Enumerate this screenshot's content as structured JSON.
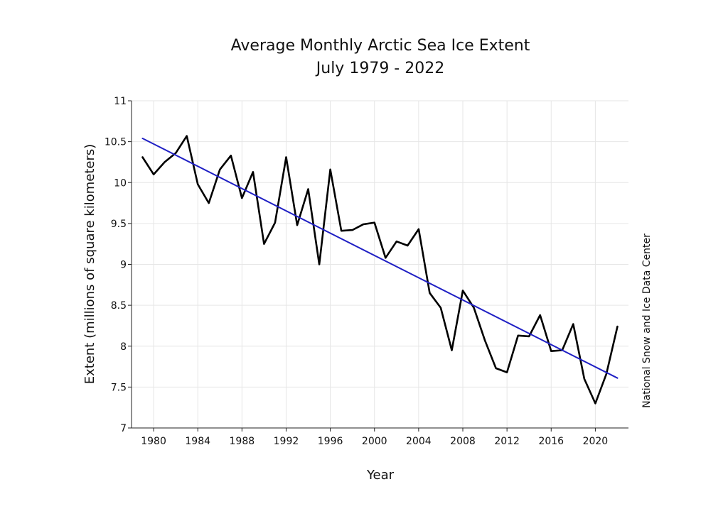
{
  "chart_data": {
    "type": "line",
    "title": "Average Monthly Arctic Sea Ice Extent",
    "subtitle": "July 1979 - 2022",
    "xlabel": "Year",
    "ylabel": "Extent (millions of square kilometers)",
    "credit": "National Snow and Ice Data Center",
    "xlim": [
      1978,
      2023
    ],
    "ylim": [
      7,
      11
    ],
    "xticks": [
      1980,
      1984,
      1988,
      1992,
      1996,
      2000,
      2004,
      2008,
      2012,
      2016,
      2020
    ],
    "xtick_labels": [
      "1980",
      "1984",
      "1988",
      "1992",
      "1996",
      "2000",
      "2004",
      "2008",
      "2012",
      "2016",
      "2020"
    ],
    "yticks": [
      7,
      7.5,
      8,
      8.5,
      9,
      9.5,
      10,
      10.5,
      11
    ],
    "ytick_labels": [
      "7",
      "7.5",
      "8",
      "8.5",
      "9",
      "9.5",
      "10",
      "10.5",
      "11"
    ],
    "grid": true,
    "legend": "none",
    "series": [
      {
        "color": "#000000",
        "x": [
          1979,
          1980,
          1981,
          1982,
          1983,
          1984,
          1985,
          1986,
          1987,
          1988,
          1989,
          1990,
          1991,
          1992,
          1993,
          1994,
          1995,
          1996,
          1997,
          1998,
          1999,
          2000,
          2001,
          2002,
          2003,
          2004,
          2005,
          2006,
          2007,
          2008,
          2009,
          2010,
          2011,
          2012,
          2013,
          2014,
          2015,
          2016,
          2017,
          2018,
          2019,
          2020,
          2021,
          2022
        ],
        "values": [
          10.31,
          10.1,
          10.25,
          10.36,
          10.57,
          9.98,
          9.75,
          10.16,
          10.33,
          9.81,
          10.13,
          9.25,
          9.51,
          10.31,
          9.48,
          9.92,
          9.0,
          10.16,
          9.41,
          9.42,
          9.49,
          9.51,
          9.08,
          9.28,
          9.23,
          9.43,
          8.65,
          8.47,
          7.95,
          8.68,
          8.47,
          8.07,
          7.73,
          7.68,
          8.13,
          8.12,
          8.38,
          7.94,
          7.95,
          8.27,
          7.6,
          7.3,
          7.66,
          8.24
        ]
      },
      {
        "color": "#1f1fc4",
        "x": [
          1979,
          2022
        ],
        "values": [
          10.54,
          7.61
        ]
      }
    ]
  }
}
